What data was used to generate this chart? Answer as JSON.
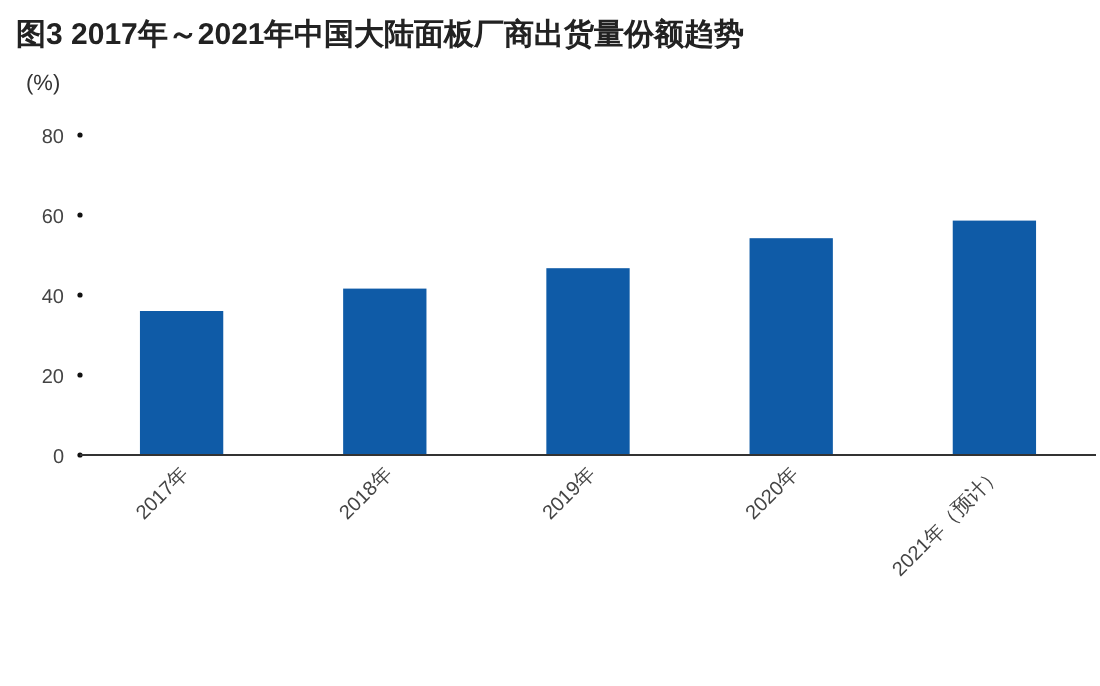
{
  "chart_data": {
    "type": "bar",
    "title": "图3 2017年～2021年中国大陆面板厂商出货量份额趋势",
    "ylabel": "(%)",
    "categories": [
      "2017年",
      "2018年",
      "2019年",
      "2020年",
      "2021年（预计）"
    ],
    "values": [
      36,
      41.6,
      46.7,
      54.2,
      58.6
    ],
    "color": "#0f5ba7",
    "ylim": [
      0,
      80
    ],
    "yticks": [
      0,
      20,
      40,
      60,
      80
    ]
  }
}
